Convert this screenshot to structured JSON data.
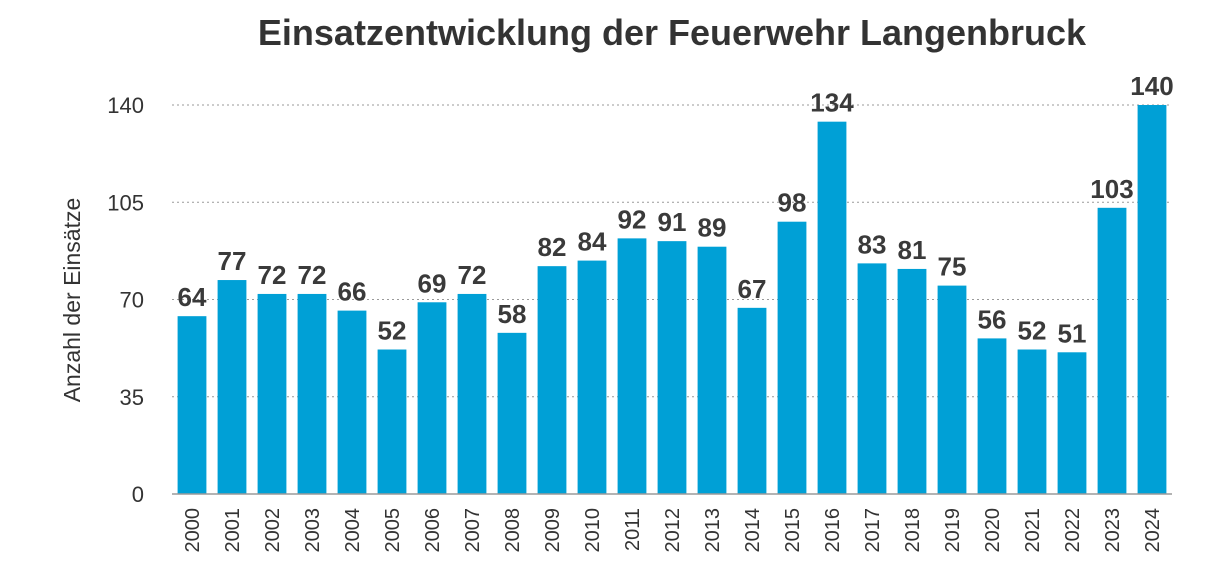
{
  "chart_data": {
    "type": "bar",
    "title": "Einsatzentwicklung der Feuerwehr Langenbruck",
    "ylabel": "Anzahl der Einsätze",
    "xlabel": "",
    "ylim": [
      0,
      140
    ],
    "yticks": [
      0,
      35,
      70,
      105,
      140
    ],
    "grid": true,
    "legend": "none",
    "bar_color": "#00a0d6",
    "categories": [
      "2000",
      "2001",
      "2002",
      "2003",
      "2004",
      "2005",
      "2006",
      "2007",
      "2008",
      "2009",
      "2010",
      "2011",
      "2012",
      "2013",
      "2014",
      "2015",
      "2016",
      "2017",
      "2018",
      "2019",
      "2020",
      "2021",
      "2022",
      "2023",
      "2024"
    ],
    "values": [
      64,
      77,
      72,
      72,
      66,
      52,
      69,
      72,
      58,
      82,
      84,
      92,
      91,
      89,
      67,
      98,
      134,
      83,
      81,
      75,
      56,
      52,
      51,
      103,
      140
    ]
  }
}
